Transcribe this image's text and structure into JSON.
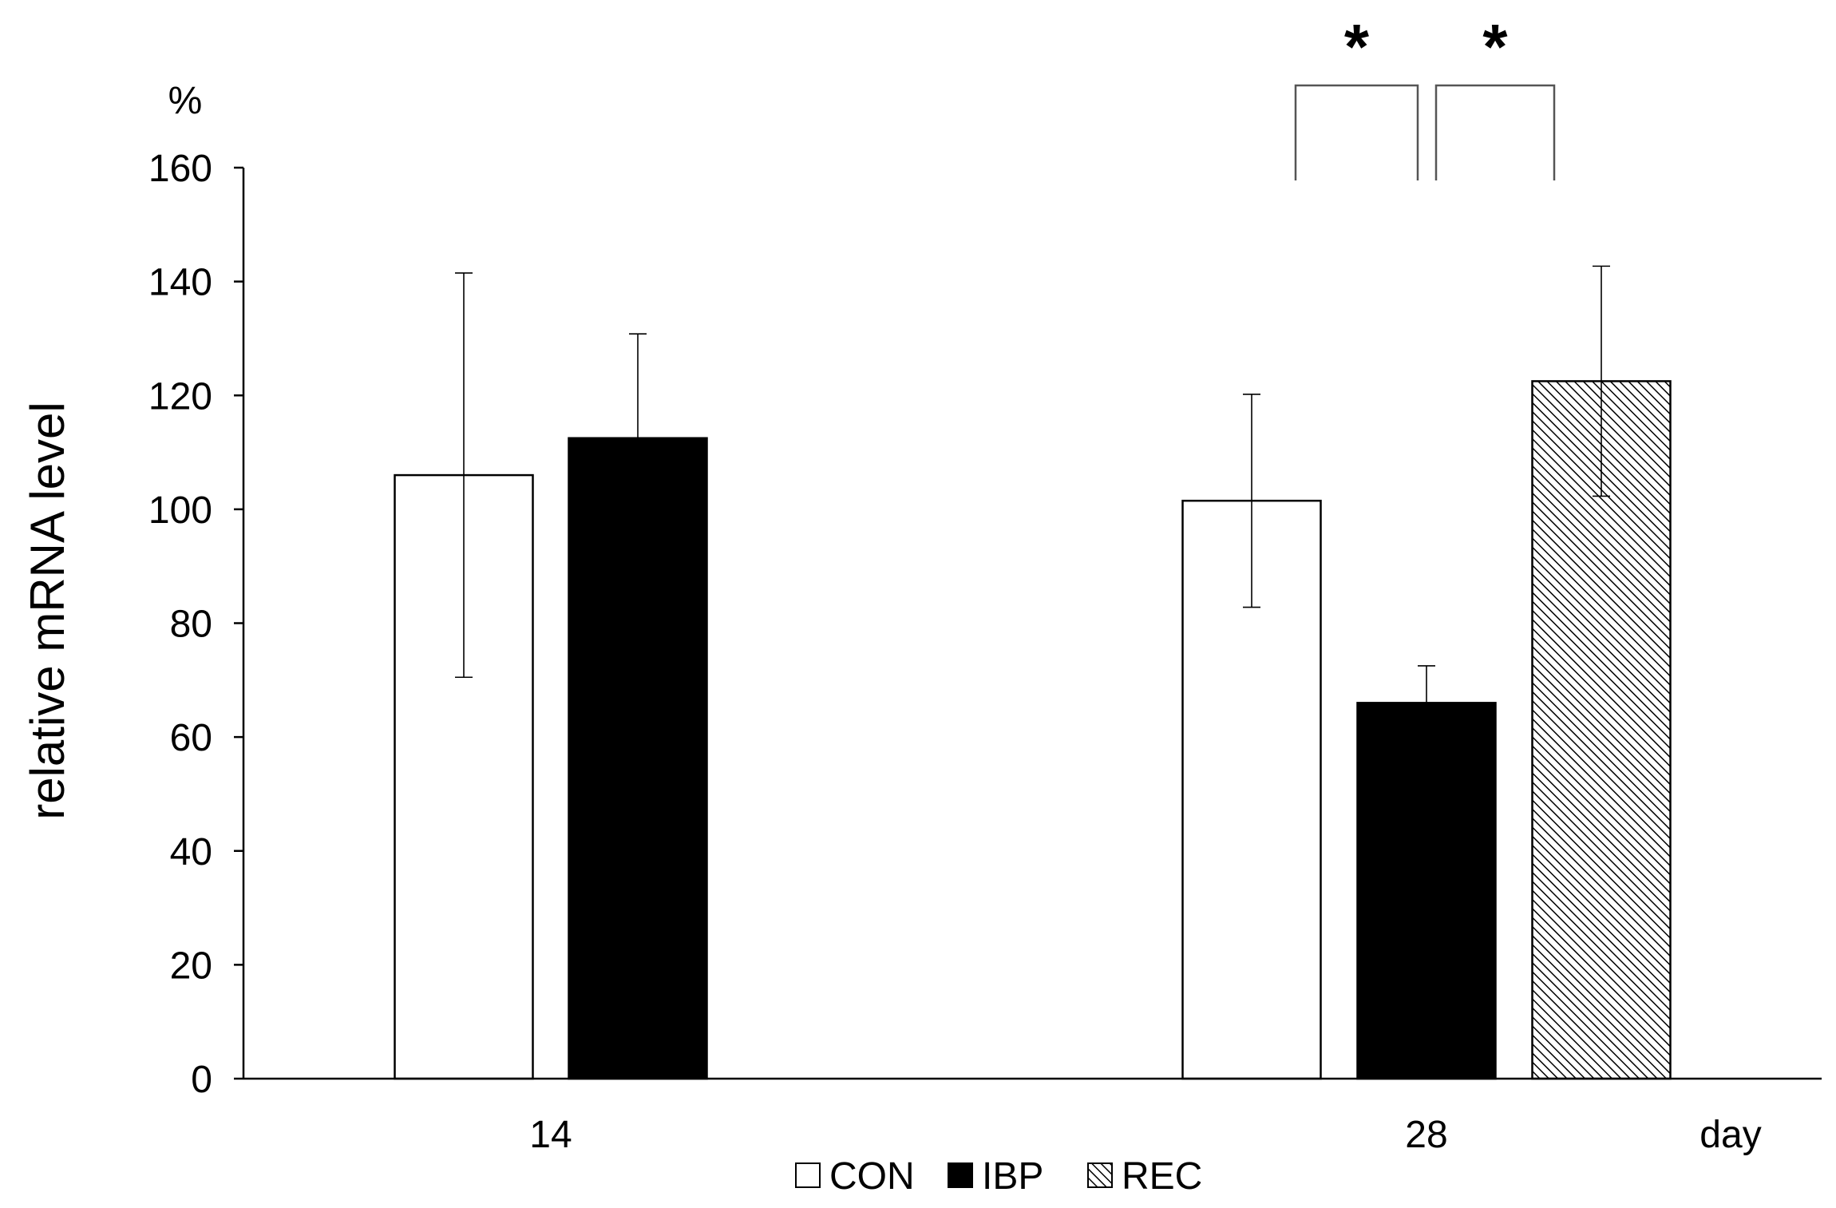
{
  "chart_data": {
    "type": "bar",
    "title": "",
    "ylabel": "relative mRNA level",
    "yunit": "%",
    "xunit": "day",
    "ylim": [
      0,
      160
    ],
    "yticks": [
      0,
      20,
      40,
      60,
      80,
      100,
      120,
      140,
      160
    ],
    "categories": [
      "14",
      "28"
    ],
    "series": [
      {
        "name": "CON",
        "values": [
          106,
          101.5
        ],
        "errors": [
          35.5,
          18.7
        ],
        "fill": "#ffffff",
        "pattern": "none"
      },
      {
        "name": "IBP",
        "values": [
          112.5,
          66
        ],
        "errors": [
          18.3,
          6.5
        ],
        "fill": "#000000",
        "pattern": "none"
      },
      {
        "name": "REC",
        "values": [
          null,
          122.5
        ],
        "errors": [
          null,
          20.2
        ],
        "fill": "#ffffff",
        "pattern": "diagonal-hatch"
      }
    ],
    "significance": [
      {
        "category": "28",
        "between": [
          "CON",
          "IBP"
        ],
        "label": "*"
      },
      {
        "category": "28",
        "between": [
          "IBP",
          "REC"
        ],
        "label": "*"
      }
    ],
    "legend": {
      "position": "bottom-center",
      "entries": [
        "CON",
        "IBP",
        "REC"
      ]
    },
    "grid": false
  }
}
